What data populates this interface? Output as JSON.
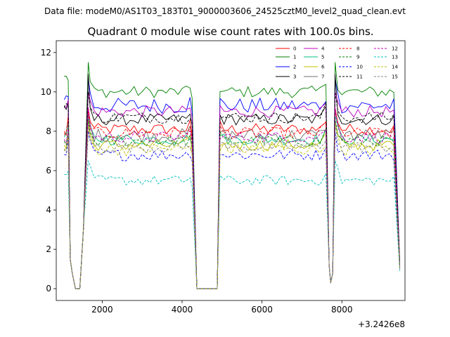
{
  "chart_data": {
    "type": "line",
    "suptitle": "Data file: modeM0/AS1T03_183T01_9000003606_24525cztM0_level2_quad_clean.evt",
    "title": "Quadrant 0 module wise count rates with 100.0s bins.",
    "x_offset_label": "+3.2426e8",
    "xlim": [
      850,
      9580
    ],
    "ylim": [
      -0.6,
      12.6
    ],
    "x_ticks": [
      2000,
      4000,
      6000,
      8000
    ],
    "x_tick_labels": [
      "2000",
      "4000",
      "6000",
      "8000"
    ],
    "y_ticks": [
      0,
      2,
      4,
      6,
      8,
      10,
      12
    ],
    "y_tick_labels": [
      "0",
      "2",
      "4",
      "6",
      "8",
      "10",
      "12"
    ],
    "legend_position": "top-right",
    "segments": [
      {
        "start": 1050,
        "end": 1650
      },
      {
        "start": 4250,
        "end": 4900
      },
      {
        "start": 7600,
        "end": 9450
      }
    ],
    "series": [
      {
        "name": "0",
        "color": "#ff0000",
        "style": "solid",
        "level": 8.1,
        "amp": 0.3,
        "peak": 9.2,
        "startv": 8.0,
        "endv": 1.1
      },
      {
        "name": "1",
        "color": "#008000",
        "style": "solid",
        "level": 10.0,
        "amp": 0.3,
        "peak": 11.5,
        "startv": 10.8,
        "endv": 1.2
      },
      {
        "name": "2",
        "color": "#0000ff",
        "style": "solid",
        "level": 9.3,
        "amp": 0.4,
        "peak": 10.7,
        "startv": 9.6,
        "endv": 1.2
      },
      {
        "name": "3",
        "color": "#000000",
        "style": "solid",
        "level": 8.6,
        "amp": 0.3,
        "peak": 10.9,
        "startv": 9.3,
        "endv": 1.1
      },
      {
        "name": "4",
        "color": "#bf00bf",
        "style": "solid",
        "level": 9.0,
        "amp": 0.3,
        "peak": 10.0,
        "startv": 9.2,
        "endv": 1.1
      },
      {
        "name": "5",
        "color": "#00bf80",
        "style": "solid",
        "level": 7.6,
        "amp": 0.3,
        "peak": 8.8,
        "startv": 7.7,
        "endv": 1.0
      },
      {
        "name": "6",
        "color": "#bfbf00",
        "style": "solid",
        "level": 7.3,
        "amp": 0.3,
        "peak": 8.5,
        "startv": 7.3,
        "endv": 1.0
      },
      {
        "name": "7",
        "color": "#707070",
        "style": "solid",
        "level": 7.8,
        "amp": 0.35,
        "peak": 9.0,
        "startv": 7.9,
        "endv": 1.1
      },
      {
        "name": "8",
        "color": "#ff0000",
        "style": "dashed",
        "level": 7.9,
        "amp": 0.3,
        "peak": 9.0,
        "startv": 7.8,
        "endv": 1.1
      },
      {
        "name": "9",
        "color": "#008000",
        "style": "dashed",
        "level": 7.5,
        "amp": 0.3,
        "peak": 8.6,
        "startv": 7.5,
        "endv": 1.0
      },
      {
        "name": "10",
        "color": "#0000ff",
        "style": "dashed",
        "level": 6.8,
        "amp": 0.3,
        "peak": 8.0,
        "startv": 6.8,
        "endv": 1.0
      },
      {
        "name": "11",
        "color": "#000000",
        "style": "dashed",
        "level": 8.7,
        "amp": 0.3,
        "peak": 10.0,
        "startv": 9.2,
        "endv": 1.1
      },
      {
        "name": "12",
        "color": "#bf00bf",
        "style": "dashed",
        "level": 7.7,
        "amp": 0.3,
        "peak": 9.2,
        "startv": 7.6,
        "endv": 1.0
      },
      {
        "name": "13",
        "color": "#00bfbf",
        "style": "dashed",
        "level": 5.5,
        "amp": 0.25,
        "peak": 6.5,
        "startv": 5.8,
        "endv": 0.9
      },
      {
        "name": "14",
        "color": "#bfbf00",
        "style": "dashed",
        "level": 7.1,
        "amp": 0.35,
        "peak": 8.3,
        "startv": 7.0,
        "endv": 1.0
      },
      {
        "name": "15",
        "color": "#808080",
        "style": "dashed",
        "level": 7.2,
        "amp": 0.3,
        "peak": 8.4,
        "startv": 7.1,
        "endv": 1.0
      }
    ]
  }
}
